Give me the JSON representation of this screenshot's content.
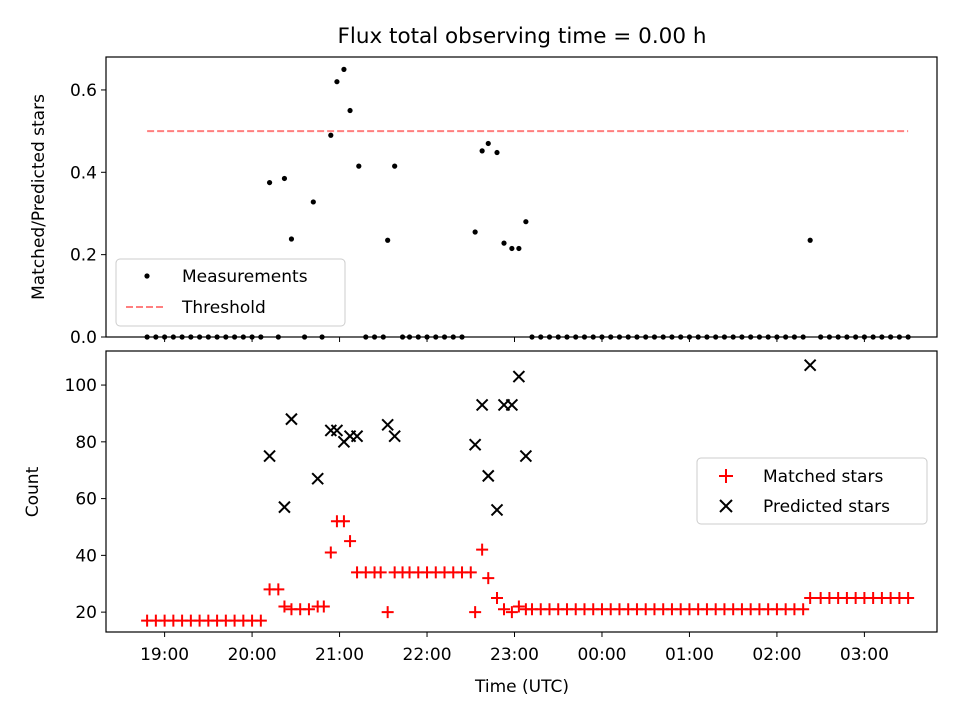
{
  "figure": {
    "title": "Flux total observing time = 0.00 h",
    "xlabel": "Time (UTC)",
    "xticks": [
      "19:00",
      "20:00",
      "21:00",
      "22:00",
      "23:00",
      "00:00",
      "01:00",
      "02:00",
      "03:00"
    ]
  },
  "chart_data": [
    {
      "type": "scatter",
      "ylabel": "Matched/Predicted stars",
      "xlim_hours": [
        18.33,
        27.83
      ],
      "ylim": [
        0,
        0.68
      ],
      "yticks": [
        "0.0",
        "0.2",
        "0.4",
        "0.6"
      ],
      "ytick_values": [
        0,
        0.2,
        0.4,
        0.6
      ],
      "legend": {
        "placement": "lower-left",
        "entries": [
          "Measurements",
          "Threshold"
        ]
      },
      "threshold": {
        "name": "Threshold",
        "value": 0.5,
        "x_range_hours": [
          18.8,
          27.5
        ],
        "color": "#ff7f7f",
        "style": "dashed"
      },
      "series": [
        {
          "name": "Measurements",
          "color": "#000000",
          "marker": "dot",
          "points": [
            [
              18.8,
              0
            ],
            [
              18.9,
              0
            ],
            [
              19.0,
              0
            ],
            [
              19.1,
              0
            ],
            [
              19.2,
              0
            ],
            [
              19.3,
              0
            ],
            [
              19.4,
              0
            ],
            [
              19.5,
              0
            ],
            [
              19.6,
              0
            ],
            [
              19.7,
              0
            ],
            [
              19.8,
              0
            ],
            [
              19.9,
              0
            ],
            [
              20.0,
              0
            ],
            [
              20.1,
              0
            ],
            [
              20.2,
              0.375
            ],
            [
              20.3,
              0
            ],
            [
              20.37,
              0.385
            ],
            [
              20.45,
              0.238
            ],
            [
              20.6,
              0
            ],
            [
              20.7,
              0.328
            ],
            [
              20.8,
              0
            ],
            [
              20.9,
              0.49
            ],
            [
              20.97,
              0.62
            ],
            [
              21.05,
              0.65
            ],
            [
              21.12,
              0.55
            ],
            [
              21.22,
              0.415
            ],
            [
              21.3,
              0
            ],
            [
              21.4,
              0
            ],
            [
              21.5,
              0
            ],
            [
              21.55,
              0.235
            ],
            [
              21.63,
              0.415
            ],
            [
              21.72,
              0
            ],
            [
              21.8,
              0
            ],
            [
              21.9,
              0
            ],
            [
              22.0,
              0
            ],
            [
              22.1,
              0
            ],
            [
              22.2,
              0
            ],
            [
              22.3,
              0
            ],
            [
              22.4,
              0
            ],
            [
              22.55,
              0.255
            ],
            [
              22.63,
              0.452
            ],
            [
              22.7,
              0.47
            ],
            [
              22.8,
              0.448
            ],
            [
              22.88,
              0.228
            ],
            [
              22.97,
              0.215
            ],
            [
              23.05,
              0.215
            ],
            [
              23.13,
              0.28
            ],
            [
              23.2,
              0
            ],
            [
              23.3,
              0
            ],
            [
              23.4,
              0
            ],
            [
              23.5,
              0
            ],
            [
              23.6,
              0
            ],
            [
              23.7,
              0
            ],
            [
              23.8,
              0
            ],
            [
              23.9,
              0
            ],
            [
              24.0,
              0
            ],
            [
              24.1,
              0
            ],
            [
              24.2,
              0
            ],
            [
              24.3,
              0
            ],
            [
              24.4,
              0
            ],
            [
              24.5,
              0
            ],
            [
              24.6,
              0
            ],
            [
              24.7,
              0
            ],
            [
              24.8,
              0
            ],
            [
              24.9,
              0
            ],
            [
              25.0,
              0
            ],
            [
              25.1,
              0
            ],
            [
              25.2,
              0
            ],
            [
              25.3,
              0
            ],
            [
              25.4,
              0
            ],
            [
              25.5,
              0
            ],
            [
              25.6,
              0
            ],
            [
              25.7,
              0
            ],
            [
              25.8,
              0
            ],
            [
              25.9,
              0
            ],
            [
              26.0,
              0
            ],
            [
              26.1,
              0
            ],
            [
              26.2,
              0
            ],
            [
              26.3,
              0
            ],
            [
              26.38,
              0.235
            ],
            [
              26.5,
              0
            ],
            [
              26.6,
              0
            ],
            [
              26.7,
              0
            ],
            [
              26.8,
              0
            ],
            [
              26.9,
              0
            ],
            [
              27.0,
              0
            ],
            [
              27.1,
              0
            ],
            [
              27.2,
              0
            ],
            [
              27.3,
              0
            ],
            [
              27.4,
              0
            ],
            [
              27.5,
              0
            ]
          ]
        }
      ]
    },
    {
      "type": "scatter",
      "ylabel": "Count",
      "xlim_hours": [
        18.33,
        27.83
      ],
      "ylim": [
        13,
        112
      ],
      "yticks": [
        "20",
        "40",
        "60",
        "80",
        "100"
      ],
      "ytick_values": [
        20,
        40,
        60,
        80,
        100
      ],
      "legend": {
        "placement": "center-right",
        "entries": [
          "Matched stars",
          "Predicted stars"
        ]
      },
      "series": [
        {
          "name": "Matched stars",
          "color": "#ff0000",
          "marker": "plus",
          "points": [
            [
              18.8,
              17
            ],
            [
              18.9,
              17
            ],
            [
              19.0,
              17
            ],
            [
              19.1,
              17
            ],
            [
              19.2,
              17
            ],
            [
              19.3,
              17
            ],
            [
              19.4,
              17
            ],
            [
              19.5,
              17
            ],
            [
              19.6,
              17
            ],
            [
              19.7,
              17
            ],
            [
              19.8,
              17
            ],
            [
              19.9,
              17
            ],
            [
              20.0,
              17
            ],
            [
              20.1,
              17
            ],
            [
              20.2,
              28
            ],
            [
              20.3,
              28
            ],
            [
              20.37,
              22
            ],
            [
              20.45,
              21
            ],
            [
              20.55,
              21
            ],
            [
              20.65,
              21
            ],
            [
              20.75,
              22
            ],
            [
              20.82,
              22
            ],
            [
              20.9,
              41
            ],
            [
              20.97,
              52
            ],
            [
              21.05,
              52
            ],
            [
              21.12,
              45
            ],
            [
              21.2,
              34
            ],
            [
              21.3,
              34
            ],
            [
              21.4,
              34
            ],
            [
              21.47,
              34
            ],
            [
              21.55,
              20
            ],
            [
              21.63,
              34
            ],
            [
              21.72,
              34
            ],
            [
              21.8,
              34
            ],
            [
              21.9,
              34
            ],
            [
              22.0,
              34
            ],
            [
              22.1,
              34
            ],
            [
              22.2,
              34
            ],
            [
              22.3,
              34
            ],
            [
              22.4,
              34
            ],
            [
              22.5,
              34
            ],
            [
              22.55,
              20
            ],
            [
              22.63,
              42
            ],
            [
              22.7,
              32
            ],
            [
              22.8,
              25
            ],
            [
              22.88,
              21
            ],
            [
              22.97,
              20
            ],
            [
              23.05,
              22
            ],
            [
              23.13,
              21
            ],
            [
              23.2,
              21
            ],
            [
              23.3,
              21
            ],
            [
              23.4,
              21
            ],
            [
              23.5,
              21
            ],
            [
              23.6,
              21
            ],
            [
              23.7,
              21
            ],
            [
              23.8,
              21
            ],
            [
              23.9,
              21
            ],
            [
              24.0,
              21
            ],
            [
              24.1,
              21
            ],
            [
              24.2,
              21
            ],
            [
              24.3,
              21
            ],
            [
              24.4,
              21
            ],
            [
              24.5,
              21
            ],
            [
              24.6,
              21
            ],
            [
              24.7,
              21
            ],
            [
              24.8,
              21
            ],
            [
              24.9,
              21
            ],
            [
              25.0,
              21
            ],
            [
              25.1,
              21
            ],
            [
              25.2,
              21
            ],
            [
              25.3,
              21
            ],
            [
              25.4,
              21
            ],
            [
              25.5,
              21
            ],
            [
              25.6,
              21
            ],
            [
              25.7,
              21
            ],
            [
              25.8,
              21
            ],
            [
              25.9,
              21
            ],
            [
              26.0,
              21
            ],
            [
              26.1,
              21
            ],
            [
              26.2,
              21
            ],
            [
              26.3,
              21
            ],
            [
              26.38,
              25
            ],
            [
              26.5,
              25
            ],
            [
              26.6,
              25
            ],
            [
              26.7,
              25
            ],
            [
              26.8,
              25
            ],
            [
              26.9,
              25
            ],
            [
              27.0,
              25
            ],
            [
              27.1,
              25
            ],
            [
              27.2,
              25
            ],
            [
              27.3,
              25
            ],
            [
              27.4,
              25
            ],
            [
              27.5,
              25
            ]
          ]
        },
        {
          "name": "Predicted stars",
          "color": "#000000",
          "marker": "x",
          "points": [
            [
              20.2,
              75
            ],
            [
              20.37,
              57
            ],
            [
              20.45,
              88
            ],
            [
              20.75,
              67
            ],
            [
              20.9,
              84
            ],
            [
              20.97,
              84
            ],
            [
              21.05,
              80
            ],
            [
              21.12,
              82
            ],
            [
              21.2,
              82
            ],
            [
              21.55,
              86
            ],
            [
              21.63,
              82
            ],
            [
              22.55,
              79
            ],
            [
              22.63,
              93
            ],
            [
              22.7,
              68
            ],
            [
              22.8,
              56
            ],
            [
              22.88,
              93
            ],
            [
              22.97,
              93
            ],
            [
              23.05,
              103
            ],
            [
              23.13,
              75
            ],
            [
              26.38,
              107
            ]
          ]
        }
      ]
    }
  ]
}
